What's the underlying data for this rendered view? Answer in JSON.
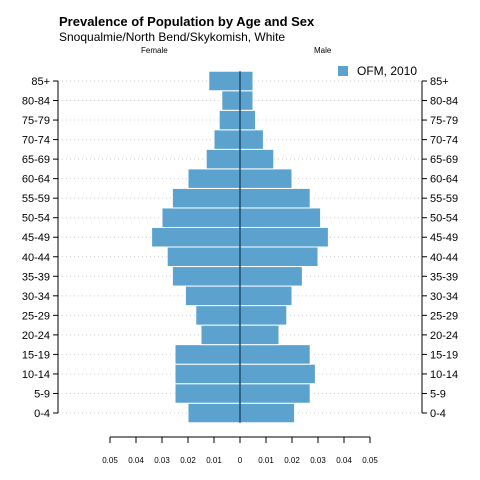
{
  "header": {
    "title": "Prevalence of Population by Age and Sex",
    "subtitle": "Snoqualmie/North Bend/Skykomish, White",
    "left_label": "Female",
    "right_label": "Male"
  },
  "legend": {
    "label": "OFM, 2010",
    "color": "#5ba2cf"
  },
  "chart_data": {
    "type": "bar",
    "orientation": "horizontal",
    "title": "Prevalence of Population by Age and Sex",
    "subtitle": "Snoqualmie/North Bend/Skykomish, White",
    "categories": [
      "0-4",
      "5-9",
      "10-14",
      "15-19",
      "20-24",
      "25-29",
      "30-34",
      "35-39",
      "40-44",
      "45-49",
      "50-54",
      "55-59",
      "60-64",
      "65-69",
      "70-74",
      "75-79",
      "80-84",
      "85+"
    ],
    "series": [
      {
        "name": "Female",
        "values": [
          0.02,
          0.025,
          0.025,
          0.025,
          0.015,
          0.017,
          0.021,
          0.026,
          0.028,
          0.034,
          0.03,
          0.026,
          0.02,
          0.013,
          0.01,
          0.008,
          0.007,
          0.012
        ]
      },
      {
        "name": "Male",
        "values": [
          0.021,
          0.027,
          0.029,
          0.027,
          0.015,
          0.018,
          0.02,
          0.024,
          0.03,
          0.034,
          0.031,
          0.027,
          0.02,
          0.013,
          0.009,
          0.006,
          0.005,
          0.005
        ]
      }
    ],
    "legend": [
      "OFM, 2010"
    ],
    "xlim": [
      -0.05,
      0.05
    ],
    "x_ticks": [
      -0.05,
      -0.04,
      -0.03,
      -0.02,
      -0.01,
      0,
      0.01,
      0.02,
      0.03,
      0.04,
      0.05
    ],
    "x_tick_labels": [
      "0.05",
      "0.04",
      "0.03",
      "0.02",
      "0.01",
      "0",
      "0.01",
      "0.02",
      "0.03",
      "0.04",
      "0.05"
    ],
    "grid": true,
    "legend_position": "top-right",
    "colors": {
      "bar": "#5ba2cf",
      "bar_edge": "#ffffff",
      "center_line": "#1f4e6e",
      "grid": "#cccccc"
    }
  }
}
